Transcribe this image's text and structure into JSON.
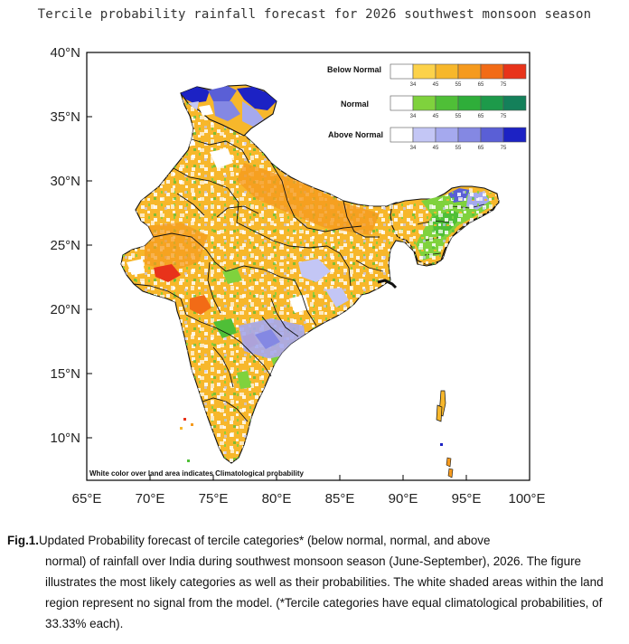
{
  "title": "Tercile probability rainfall forecast for 2026 southwest monsoon  season",
  "axes": {
    "y_ticks": [
      "40°N",
      "35°N",
      "30°N",
      "25°N",
      "20°N",
      "15°N",
      "10°N"
    ],
    "x_ticks": [
      "65°E",
      "70°E",
      "75°E",
      "80°E",
      "85°E",
      "90°E",
      "95°E",
      "100°E"
    ]
  },
  "legend": [
    {
      "label": "Below Normal",
      "colors": [
        "#ffffff",
        "#fcd24a",
        "#f7b72b",
        "#f59a1e",
        "#f26b16",
        "#e8331a"
      ]
    },
    {
      "label": "Normal",
      "colors": [
        "#ffffff",
        "#7fd23d",
        "#4fbf37",
        "#2fae3a",
        "#1d9a4a",
        "#14805a"
      ]
    },
    {
      "label": "Above Normal",
      "colors": [
        "#ffffff",
        "#c3c6f5",
        "#a5a9ee",
        "#8488e3",
        "#5a5fd6",
        "#1c22c4"
      ]
    }
  ],
  "legend_ticks": [
    "34",
    "45",
    "55",
    "65",
    "75"
  ],
  "note": "White color over land area indicates Climatological probability",
  "caption": {
    "fig_label": "Fig.1.",
    "first_line": "Updated Probability forecast of tercile categories* (below normal, normal, and above",
    "rest": "normal) of rainfall over India during  southwest monsoon season (June-September), 2026. The figure illustrates the most likely categories as well as their probabilities. The white shaded areas within the land region represent no signal from the model. (*Tercile categories have equal climatological probabilities, of 33.33% each)."
  }
}
